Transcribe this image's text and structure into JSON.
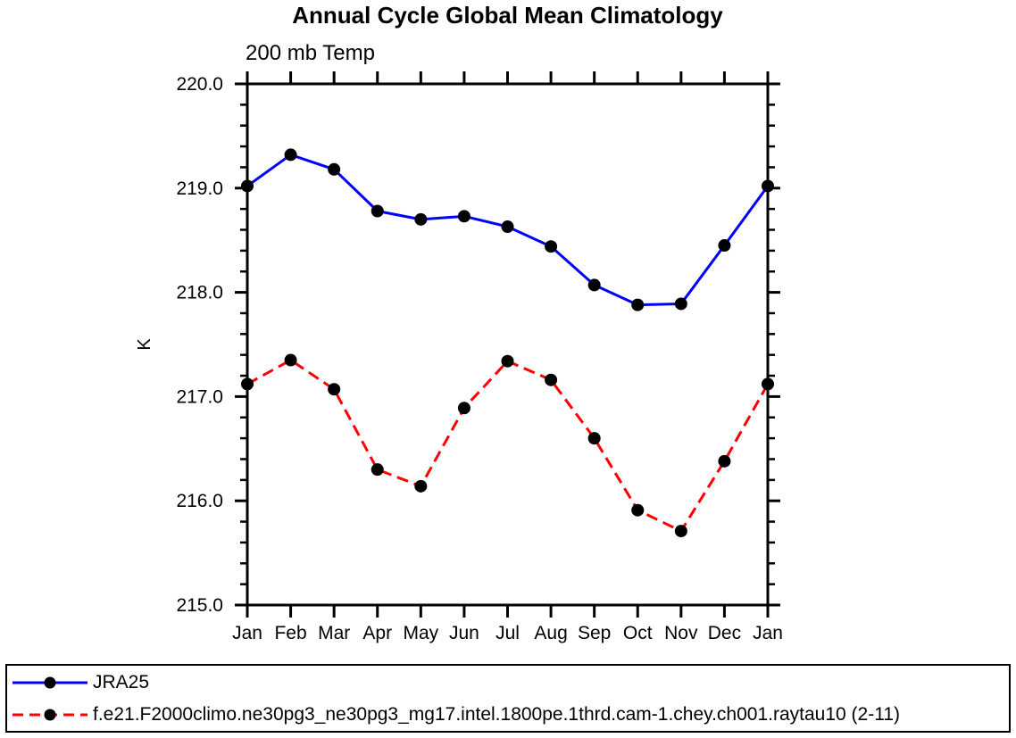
{
  "title": "Annual Cycle Global Mean Climatology",
  "legend": {
    "position": "bottom-box",
    "entries": [
      {
        "label": "JRA25",
        "color": "#0000ff",
        "line_style": "solid",
        "marker": "filled-circle",
        "marker_color": "#000000"
      },
      {
        "label": "f.e21.F2000climo.ne30pg3_ne30pg3_mg17.intel.1800pe.1thrd.cam-1.chey.ch001.raytau10 (2-11)",
        "color": "#ff0000",
        "line_style": "dashed",
        "marker": "filled-circle",
        "marker_color": "#000000"
      }
    ]
  },
  "chart_data": {
    "type": "line",
    "title": "Annual Cycle Global Mean Climatology",
    "subtitle": "200 mb Temp",
    "ylabel": "K",
    "xlabel": "",
    "categories": [
      "Jan",
      "Feb",
      "Mar",
      "Apr",
      "May",
      "Jun",
      "Jul",
      "Aug",
      "Sep",
      "Oct",
      "Nov",
      "Dec",
      "Jan"
    ],
    "series": [
      {
        "name": "JRA25",
        "color": "#0000ff",
        "line_style": "solid",
        "marker": "filled-circle",
        "marker_color": "#000000",
        "values": [
          219.02,
          219.32,
          219.18,
          218.78,
          218.7,
          218.73,
          218.63,
          218.44,
          218.07,
          217.88,
          217.89,
          218.45,
          219.02
        ]
      },
      {
        "name": "f.e21.F2000climo.ne30pg3_ne30pg3_mg17.intel.1800pe.1thrd.cam-1.chey.ch001.raytau10 (2-11)",
        "color": "#ff0000",
        "line_style": "dashed",
        "marker": "filled-circle",
        "marker_color": "#000000",
        "values": [
          217.12,
          217.35,
          217.07,
          216.3,
          216.14,
          216.89,
          217.34,
          217.16,
          216.6,
          215.91,
          215.71,
          216.38,
          217.12
        ]
      }
    ],
    "ylim": [
      215.0,
      220.0
    ],
    "ytick_interval": 1.0,
    "ytick_minor_interval": 0.2,
    "ytick_labels": [
      "215.0",
      "216.0",
      "217.0",
      "218.0",
      "219.0",
      "220.0"
    ],
    "grid": false,
    "axis_color": "#000000",
    "legend_position": "bottom-box"
  }
}
